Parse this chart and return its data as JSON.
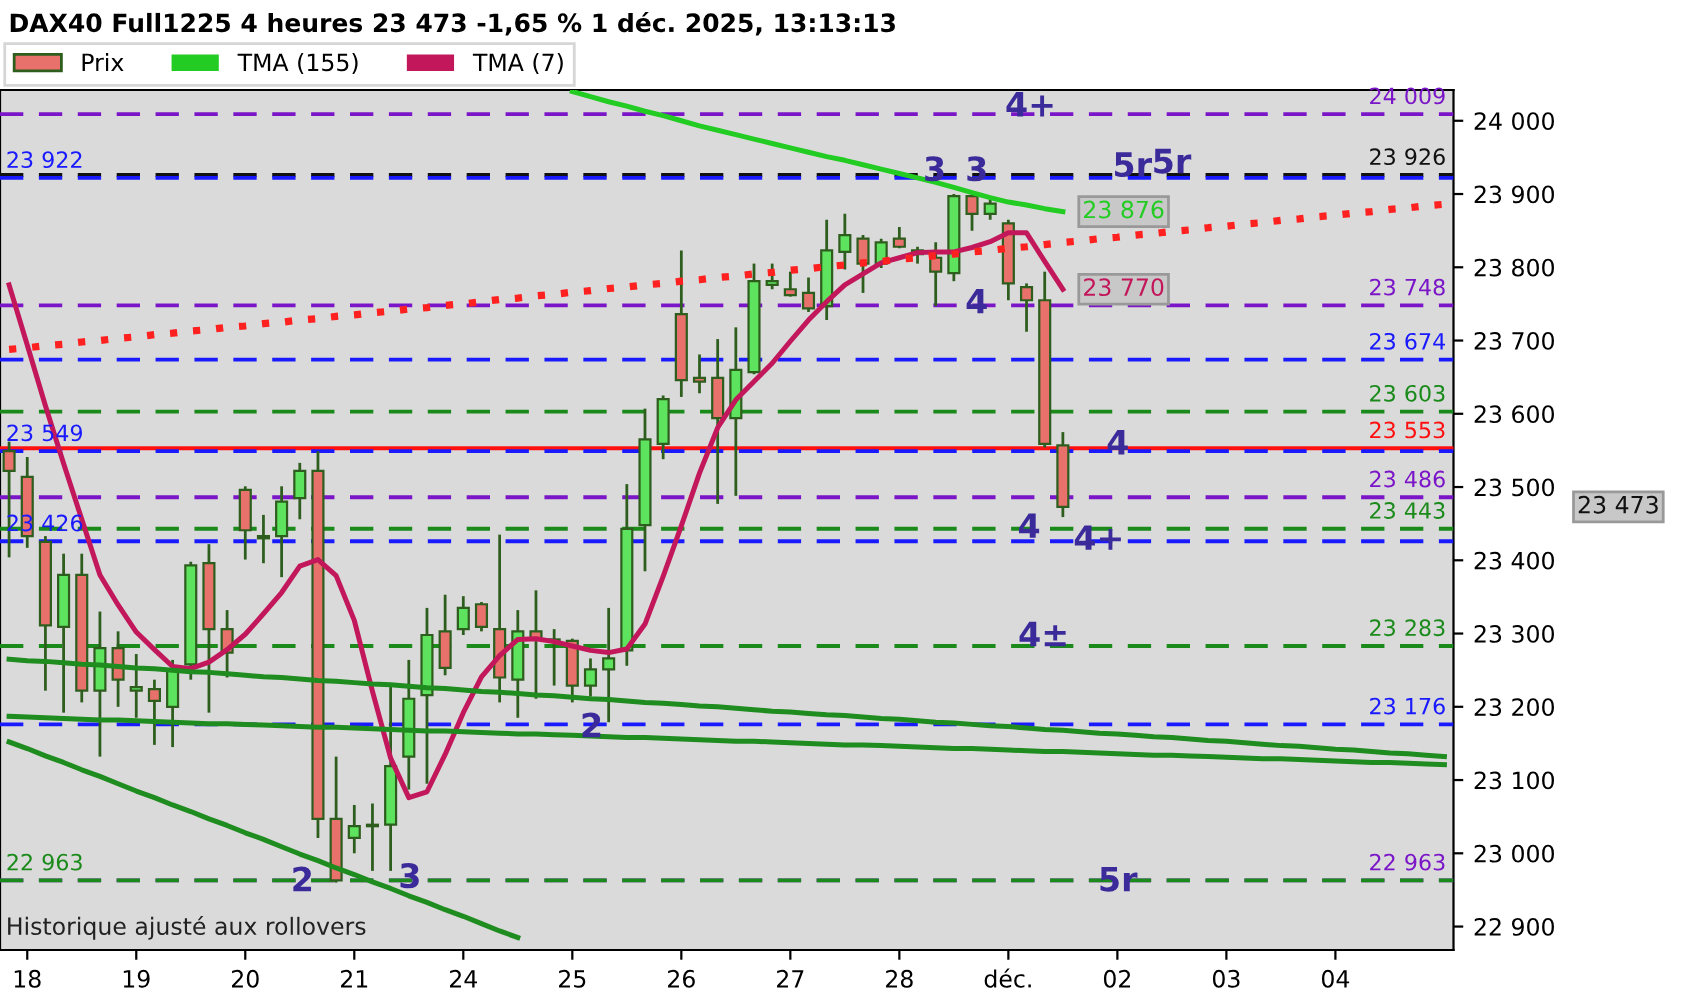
{
  "chart_data": {
    "type": "candlestick",
    "title": "DAX40 Full1225 4 heures 23 473 -1,65 % 1 déc. 2025, 13:13:13",
    "legend": "top left",
    "categories": [
      null,
      "18",
      null,
      null,
      null,
      null,
      null,
      "19",
      null,
      null,
      null,
      null,
      null,
      "20",
      null,
      null,
      null,
      null,
      null,
      "21",
      null,
      null,
      null,
      null,
      null,
      "24",
      null,
      null,
      null,
      null,
      null,
      "25",
      null,
      null,
      null,
      null,
      null,
      "26",
      null,
      null,
      null,
      null,
      null,
      "27",
      null,
      null,
      null,
      null,
      null,
      "28",
      null,
      null,
      null,
      null,
      null,
      "déc.",
      null,
      null,
      null,
      null,
      null,
      "02",
      null,
      null,
      null,
      null,
      null,
      "03",
      null,
      null,
      null,
      null,
      null,
      "04",
      null,
      null,
      null,
      null,
      null,
      null
    ],
    "ylim": [
      22868,
      24042
    ],
    "yticks": [
      {
        "value": 22900,
        "label": "22 900"
      },
      {
        "value": 23000,
        "label": "23 000"
      },
      {
        "value": 23100,
        "label": "23 100"
      },
      {
        "value": 23200,
        "label": "23 200"
      },
      {
        "value": 23300,
        "label": "23 300"
      },
      {
        "value": 23400,
        "label": "23 400"
      },
      {
        "value": 23500,
        "label": "23 500"
      },
      {
        "value": 23600,
        "label": "23 600"
      },
      {
        "value": 23700,
        "label": "23 700"
      },
      {
        "value": 23800,
        "label": "23 800"
      },
      {
        "value": 23900,
        "label": "23 900"
      },
      {
        "value": 24000,
        "label": "24 000"
      }
    ],
    "series": [
      {
        "name": "Prix",
        "ohlc": [
          [
            23549,
            23562,
            23404,
            23522
          ],
          [
            23514,
            23541,
            23417,
            23433
          ],
          [
            23425,
            23433,
            23222,
            23311
          ],
          [
            23309,
            23409,
            23192,
            23380
          ],
          [
            23380,
            23409,
            23206,
            23222
          ],
          [
            23222,
            23330,
            23132,
            23280
          ],
          [
            23280,
            23303,
            23200,
            23237
          ],
          [
            23222,
            23272,
            23185,
            23227
          ],
          [
            23224,
            23237,
            23148,
            23208
          ],
          [
            23200,
            23264,
            23145,
            23251
          ],
          [
            23258,
            23398,
            23237,
            23393
          ],
          [
            23396,
            23422,
            23192,
            23306
          ],
          [
            23306,
            23332,
            23240,
            23274
          ],
          [
            23496,
            23501,
            23401,
            23441
          ],
          [
            23430,
            23462,
            23396,
            23433
          ],
          [
            23433,
            23501,
            23377,
            23480
          ],
          [
            23485,
            23533,
            23456,
            23522
          ],
          [
            23522,
            23549,
            23021,
            23047
          ],
          [
            23047,
            23132,
            22960,
            22963
          ],
          [
            23021,
            23066,
            23000,
            23037
          ],
          [
            23037,
            23068,
            22976,
            23039
          ],
          [
            23039,
            23227,
            22976,
            23119
          ],
          [
            23132,
            23264,
            23087,
            23211
          ],
          [
            23216,
            23335,
            23095,
            23298
          ],
          [
            23303,
            23353,
            23243,
            23253
          ],
          [
            23306,
            23351,
            23298,
            23335
          ],
          [
            23340,
            23343,
            23303,
            23309
          ],
          [
            23306,
            23435,
            23206,
            23240
          ],
          [
            23237,
            23332,
            23185,
            23303
          ],
          [
            23303,
            23359,
            23211,
            23293
          ],
          [
            23290,
            23306,
            23229,
            23292
          ],
          [
            23290,
            23293,
            23206,
            23229
          ],
          [
            23229,
            23266,
            23214,
            23251
          ],
          [
            23251,
            23335,
            23179,
            23266
          ],
          [
            23277,
            23504,
            23256,
            23443
          ],
          [
            23448,
            23607,
            23385,
            23565
          ],
          [
            23559,
            23625,
            23538,
            23620
          ],
          [
            23736,
            23823,
            23623,
            23646
          ],
          [
            23649,
            23681,
            23628,
            23644
          ],
          [
            23649,
            23702,
            23477,
            23594
          ],
          [
            23594,
            23718,
            23488,
            23660
          ],
          [
            23657,
            23805,
            23654,
            23781
          ],
          [
            23776,
            23805,
            23770,
            23781
          ],
          [
            23770,
            23794,
            23760,
            23762
          ],
          [
            23765,
            23786,
            23739,
            23744
          ],
          [
            23747,
            23865,
            23728,
            23823
          ],
          [
            23821,
            23873,
            23797,
            23844
          ],
          [
            23839,
            23844,
            23765,
            23805
          ],
          [
            23805,
            23839,
            23799,
            23834
          ],
          [
            23839,
            23855,
            23826,
            23828
          ],
          [
            23823,
            23828,
            23805,
            23818
          ],
          [
            23813,
            23834,
            23747,
            23794
          ],
          [
            23792,
            23900,
            23781,
            23897
          ],
          [
            23897,
            23900,
            23850,
            23873
          ],
          [
            23873,
            23897,
            23865,
            23887
          ],
          [
            23860,
            23865,
            23755,
            23778
          ],
          [
            23773,
            23778,
            23712,
            23755
          ],
          [
            23755,
            23794,
            23554,
            23559
          ],
          [
            23557,
            23575,
            23459,
            23473
          ],
          null,
          null,
          null,
          null,
          null,
          null,
          null,
          null,
          null,
          null,
          null,
          null,
          null,
          null,
          null,
          null,
          null,
          null,
          null,
          null,
          null
        ],
        "colors": [
          "#e8716b",
          "#e8716b",
          "#e8716b",
          "#5ee35e",
          "#e8716b",
          "#5ee35e",
          "#e8716b",
          "#5ee35e",
          "#e8716b",
          "#5ee35e",
          "#5ee35e",
          "#e8716b",
          "#e8716b",
          "#e8716b",
          "#5ee35e",
          "#5ee35e",
          "#5ee35e",
          "#e8716b",
          "#e8716b",
          "#5ee35e",
          "#5ee35e",
          "#5ee35e",
          "#5ee35e",
          "#5ee35e",
          "#e8716b",
          "#5ee35e",
          "#e8716b",
          "#e8716b",
          "#5ee35e",
          "#e8716b",
          "#5ee35e",
          "#e8716b",
          "#5ee35e",
          "#5ee35e",
          "#5ee35e",
          "#5ee35e",
          "#5ee35e",
          "#e8716b",
          "#e8716b",
          "#e8716b",
          "#5ee35e",
          "#5ee35e",
          "#5ee35e",
          "#e8716b",
          "#e8716b",
          "#5ee35e",
          "#5ee35e",
          "#e8716b",
          "#5ee35e",
          "#e8716b",
          "#e8716b",
          "#e8716b",
          "#5ee35e",
          "#e8716b",
          "#5ee35e",
          "#e8716b",
          "#e8716b",
          "#e8716b",
          "#e8716b",
          null,
          null,
          null,
          null,
          null,
          null,
          null,
          null,
          null,
          null,
          null,
          null,
          null,
          null,
          null,
          null,
          null,
          null,
          null,
          null,
          null
        ],
        "value_labels": [
          null,
          null,
          null,
          null,
          null,
          null,
          null,
          null,
          null,
          null,
          null,
          null,
          null,
          null,
          null,
          null,
          null,
          null,
          null,
          null,
          null,
          null,
          null,
          null,
          null,
          null,
          null,
          null,
          null,
          null,
          null,
          null,
          null,
          null,
          null,
          null,
          null,
          null,
          null,
          null,
          null,
          null,
          null,
          null,
          null,
          null,
          null,
          null,
          null,
          null,
          null,
          null,
          null,
          null,
          null,
          null,
          null,
          null,
          "23 473",
          null,
          null,
          null,
          null,
          null,
          null,
          null,
          null,
          null,
          null,
          null,
          null,
          null,
          null,
          null,
          null,
          null,
          null,
          null,
          null,
          null
        ]
      },
      {
        "name": "TMA (155)",
        "type": "line",
        "color": "#22cc22",
        "values": [
          null,
          null,
          null,
          null,
          null,
          null,
          null,
          null,
          null,
          null,
          null,
          null,
          null,
          null,
          null,
          null,
          null,
          null,
          null,
          null,
          null,
          null,
          null,
          null,
          null,
          null,
          null,
          null,
          null,
          null,
          null,
          24040,
          24033,
          24026,
          24020,
          24013,
          24007,
          24000,
          23993,
          23987,
          23981,
          23975,
          23969,
          23963,
          23957,
          23951,
          23946,
          23940,
          23934,
          23928,
          23922,
          23916,
          23909,
          23902,
          23895,
          23889,
          23885,
          23880,
          23876,
          null,
          null,
          null,
          null,
          null,
          null,
          null,
          null,
          null,
          null,
          null,
          null,
          null,
          null,
          null,
          null,
          null,
          null,
          null,
          null,
          null
        ],
        "value_labels": [
          null,
          null,
          null,
          null,
          null,
          null,
          null,
          null,
          null,
          null,
          null,
          null,
          null,
          null,
          null,
          null,
          null,
          null,
          null,
          null,
          null,
          null,
          null,
          null,
          null,
          null,
          null,
          null,
          null,
          null,
          null,
          null,
          null,
          null,
          null,
          null,
          null,
          null,
          null,
          null,
          null,
          null,
          null,
          null,
          null,
          null,
          null,
          null,
          null,
          null,
          null,
          null,
          null,
          null,
          null,
          null,
          null,
          null,
          "23 876",
          null,
          null,
          null,
          null,
          null,
          null,
          null,
          null,
          null,
          null,
          null,
          null,
          null,
          null,
          null,
          null,
          null,
          null,
          null,
          null,
          null
        ]
      },
      {
        "name": "TMA (7)",
        "type": "line",
        "color": "#c2185b",
        "values": [
          23776,
          23694,
          23611,
          23532,
          23456,
          23380,
          23339,
          23302,
          23278,
          23255,
          23252,
          23261,
          23278,
          23299,
          23327,
          23356,
          23392,
          23401,
          23379,
          23318,
          23221,
          23130,
          23076,
          23084,
          23135,
          23192,
          23241,
          23270,
          23292,
          23293,
          23289,
          23283,
          23277,
          23274,
          23279,
          23313,
          23378,
          23447,
          23519,
          23581,
          23619,
          23644,
          23669,
          23699,
          23728,
          23753,
          23776,
          23791,
          23806,
          23813,
          23820,
          23821,
          23821,
          23827,
          23835,
          23847,
          23847,
          23808,
          23770,
          null,
          null,
          null,
          null,
          null,
          null,
          null,
          null,
          null,
          null,
          null,
          null,
          null,
          null,
          null,
          null,
          null,
          null,
          null,
          null,
          null
        ],
        "value_labels": [
          null,
          null,
          null,
          null,
          null,
          null,
          null,
          null,
          null,
          null,
          null,
          null,
          null,
          null,
          null,
          null,
          null,
          null,
          null,
          null,
          null,
          null,
          null,
          null,
          null,
          null,
          null,
          null,
          null,
          null,
          null,
          null,
          null,
          null,
          null,
          null,
          null,
          null,
          null,
          null,
          null,
          null,
          null,
          null,
          null,
          null,
          null,
          null,
          null,
          null,
          null,
          null,
          null,
          null,
          null,
          null,
          null,
          null,
          "23 770",
          null,
          null,
          null,
          null,
          null,
          null,
          null,
          null,
          null,
          null,
          null,
          null,
          null,
          null,
          null,
          null,
          null,
          null,
          null,
          null,
          null
        ]
      },
      {
        "type": "line",
        "color": "#ff2020",
        "line_style": "dotted",
        "values": [
          23688,
          23690,
          23693,
          23695,
          23698,
          23700,
          23703,
          23705,
          23708,
          23710,
          23713,
          23715,
          23718,
          23720,
          23723,
          23725,
          23728,
          23730,
          23733,
          23735,
          23738,
          23740,
          23743,
          23745,
          23748,
          23750,
          23753,
          23756,
          23758,
          23761,
          23763,
          23766,
          23768,
          23771,
          23773,
          23776,
          23778,
          23781,
          23783,
          23786,
          23788,
          23791,
          23793,
          23796,
          23798,
          23801,
          23803,
          23806,
          23808,
          23811,
          23813,
          23816,
          23818,
          23821,
          23823,
          23826,
          23828,
          23831,
          23834,
          23836,
          23839,
          23841,
          23844,
          23846,
          23849,
          23851,
          23854,
          23856,
          23859,
          23861,
          23864,
          23866,
          23869,
          23871,
          23874,
          23876,
          23879,
          23881,
          23884,
          23886
        ]
      },
      {
        "type": "line",
        "color": "#1e8c1e",
        "values": [
          23265,
          23263,
          23262,
          23260,
          23258,
          23257,
          23255,
          23253,
          23252,
          23250,
          23248,
          23247,
          23245,
          23243,
          23241,
          23240,
          23238,
          23236,
          23235,
          23233,
          23231,
          23230,
          23228,
          23226,
          23225,
          23223,
          23221,
          23220,
          23218,
          23216,
          23215,
          23213,
          23211,
          23210,
          23208,
          23206,
          23205,
          23203,
          23201,
          23200,
          23198,
          23196,
          23194,
          23193,
          23191,
          23189,
          23188,
          23186,
          23184,
          23183,
          23181,
          23179,
          23178,
          23176,
          23174,
          23173,
          23171,
          23169,
          23168,
          23166,
          23164,
          23163,
          23161,
          23159,
          23158,
          23156,
          23154,
          23153,
          23151,
          23149,
          23147,
          23146,
          23144,
          23142,
          23141,
          23139,
          23137,
          23136,
          23134,
          23132
        ]
      },
      {
        "type": "line",
        "color": "#1e8c1e",
        "values": [
          23187,
          23186,
          23185,
          23184,
          23183,
          23182,
          23182,
          23181,
          23180,
          23179,
          23178,
          23177,
          23177,
          23176,
          23175,
          23174,
          23173,
          23172,
          23172,
          23171,
          23170,
          23169,
          23168,
          23167,
          23167,
          23166,
          23165,
          23164,
          23163,
          23163,
          23162,
          23161,
          23160,
          23159,
          23158,
          23158,
          23157,
          23156,
          23155,
          23154,
          23153,
          23153,
          23152,
          23151,
          23150,
          23149,
          23148,
          23148,
          23147,
          23146,
          23145,
          23144,
          23143,
          23143,
          23142,
          23141,
          23140,
          23139,
          23139,
          23138,
          23137,
          23136,
          23135,
          23134,
          23134,
          23133,
          23132,
          23131,
          23130,
          23129,
          23129,
          23128,
          23127,
          23126,
          23125,
          23124,
          23124,
          23123,
          23122,
          23121
        ]
      },
      {
        "type": "line",
        "color": "#1e8c1e",
        "values": [
          23152,
          23143,
          23133,
          23124,
          23114,
          23105,
          23095,
          23085,
          23076,
          23066,
          23057,
          23047,
          23038,
          23028,
          23019,
          23009,
          22999,
          22990,
          22980,
          22971,
          22961,
          22952,
          22942,
          22933,
          22923,
          22914,
          22904,
          22894,
          22885,
          null,
          null,
          null,
          null,
          null,
          null,
          null,
          null,
          null,
          null,
          null,
          null,
          null,
          null,
          null,
          null,
          null,
          null,
          null,
          null,
          null,
          null,
          null,
          null,
          null,
          null,
          null,
          null,
          null,
          null,
          null,
          null,
          null,
          null,
          null,
          null,
          null,
          null,
          null,
          null,
          null,
          null,
          null,
          null,
          null,
          null,
          null,
          null,
          null,
          null,
          null
        ]
      }
    ],
    "ref_lines": [
      {
        "axis": "y",
        "value": 24009,
        "label": "24 009",
        "color": "#7b16c8",
        "line_style": "dashed"
      },
      {
        "axis": "y",
        "value": 23926,
        "label": "23 926",
        "color": "#111111",
        "line_style": "dashed"
      },
      {
        "axis": "y",
        "value": 23922,
        "label": "23 922",
        "color": "#1a1aff",
        "line_style": "dashed"
      },
      {
        "axis": "y",
        "value": 23748,
        "label": "23 748",
        "color": "#7b16c8",
        "line_style": "dashed"
      },
      {
        "axis": "y",
        "value": 23674,
        "label": "23 674",
        "color": "#1a1aff",
        "line_style": "dashed"
      },
      {
        "axis": "y",
        "value": 23603,
        "label": "23 603",
        "color": "#1a8a1a",
        "line_style": "dashed"
      },
      {
        "axis": "y",
        "value": 23553,
        "label": "23 553",
        "color": "#ff1010",
        "line_style": "solid"
      },
      {
        "axis": "y",
        "value": 23549,
        "label": "23 549",
        "color": "#1a1aff",
        "line_style": "dashed"
      },
      {
        "axis": "y",
        "value": 23486,
        "label": "23 486",
        "color": "#7b16c8",
        "line_style": "dashed"
      },
      {
        "axis": "y",
        "value": 23443,
        "label": "23 443",
        "color": "#1a8a1a",
        "line_style": "dashed"
      },
      {
        "axis": "y",
        "value": 23426,
        "label": "23 426",
        "color": "#1a1aff",
        "line_style": "dashed"
      },
      {
        "axis": "y",
        "value": 23283,
        "label": "23 283",
        "color": "#1a8a1a",
        "line_style": "dashed"
      },
      {
        "axis": "y",
        "value": 23176,
        "label": "23 176",
        "color": "#1a1aff",
        "line_style": "dashed"
      },
      {
        "axis": "y",
        "value": 22963,
        "label": "22 963",
        "color": "#7b16c8",
        "line_style": "dashed"
      },
      {
        "axis": "y",
        "value": 22963,
        "label": "22 963",
        "color": "#1a8a1a",
        "line_style": "dashed"
      }
    ],
    "annotations": [
      "4+",
      "3",
      "3",
      "5r",
      "5r",
      "4",
      "4",
      "4",
      "4+",
      "4±",
      "2",
      "2",
      "3",
      "5r",
      "Historique ajusté aux rollovers"
    ]
  }
}
